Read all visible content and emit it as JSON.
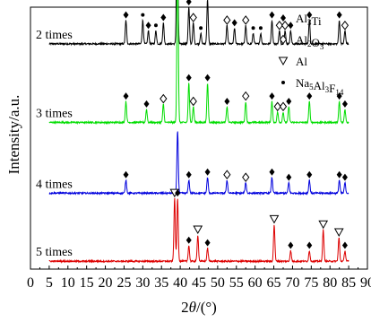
{
  "chart_data": {
    "type": "line",
    "title": "",
    "xlabel_pre": "2",
    "xlabel_theta": "θ",
    "xlabel_post": "/(°)",
    "ylabel": "Intensity/a.u.",
    "xlim": [
      0,
      90
    ],
    "x_ticks": [
      0,
      5,
      10,
      15,
      20,
      25,
      30,
      35,
      40,
      45,
      50,
      55,
      60,
      65,
      70,
      75,
      80,
      85,
      90
    ],
    "grid": false,
    "legend_position": "top-right",
    "legend": [
      {
        "symbol": "diamond",
        "base": "Al",
        "sub": "3",
        "rest": "Ti"
      },
      {
        "symbol": "open-diamond",
        "base": "Al",
        "sub": "2",
        "rest": "O",
        "sub2": "3"
      },
      {
        "symbol": "open-triangle",
        "base": "Al"
      },
      {
        "symbol": "dot",
        "base": "Na",
        "sub": "5",
        "rest": "Al",
        "sub2": "3",
        "rest2": "F",
        "sub3": "14"
      }
    ],
    "series": [
      {
        "name": "2 times",
        "color": "#000000",
        "baseline_level": 0.86,
        "peaks": [
          {
            "x": 25.5,
            "h": 0.09,
            "m": "diamond"
          },
          {
            "x": 30.0,
            "h": 0.09,
            "m": "dot"
          },
          {
            "x": 31.5,
            "h": 0.05,
            "m": "diamond"
          },
          {
            "x": 33.5,
            "h": 0.05,
            "m": "dot"
          },
          {
            "x": 35.5,
            "h": 0.08,
            "m": "diamond"
          },
          {
            "x": 39.2,
            "h": 0.66,
            "m": "none"
          },
          {
            "x": 42.3,
            "h": 0.14,
            "m": "diamond"
          },
          {
            "x": 43.5,
            "h": 0.08,
            "m": "open-diamond"
          },
          {
            "x": 45.5,
            "h": 0.04,
            "m": "dot"
          },
          {
            "x": 47.3,
            "h": 0.17,
            "m": "diamond"
          },
          {
            "x": 52.5,
            "h": 0.07,
            "m": "open-diamond"
          },
          {
            "x": 54.5,
            "h": 0.06,
            "m": "diamond"
          },
          {
            "x": 57.5,
            "h": 0.07,
            "m": "open-diamond"
          },
          {
            "x": 59.5,
            "h": 0.04,
            "m": "dot"
          },
          {
            "x": 61.5,
            "h": 0.04,
            "m": "dot"
          },
          {
            "x": 64.5,
            "h": 0.09,
            "m": "diamond"
          },
          {
            "x": 66.5,
            "h": 0.05,
            "m": "open-diamond"
          },
          {
            "x": 68.0,
            "h": 0.05,
            "m": "open-diamond"
          },
          {
            "x": 69.5,
            "h": 0.05,
            "m": "diamond"
          },
          {
            "x": 74.5,
            "h": 0.09,
            "m": "diamond"
          },
          {
            "x": 82.5,
            "h": 0.09,
            "m": "diamond"
          },
          {
            "x": 84.0,
            "h": 0.05,
            "m": "open-diamond"
          }
        ]
      },
      {
        "name": "3 times",
        "color": "#00dd00",
        "baseline_level": 0.56,
        "peaks": [
          {
            "x": 25.5,
            "h": 0.08,
            "m": "diamond"
          },
          {
            "x": 31.0,
            "h": 0.05,
            "m": "diamond"
          },
          {
            "x": 35.5,
            "h": 0.07,
            "m": "open-diamond"
          },
          {
            "x": 39.3,
            "h": 0.67,
            "m": "none"
          },
          {
            "x": 42.3,
            "h": 0.15,
            "m": "diamond"
          },
          {
            "x": 43.5,
            "h": 0.06,
            "m": "open-diamond"
          },
          {
            "x": 47.3,
            "h": 0.15,
            "m": "diamond"
          },
          {
            "x": 52.5,
            "h": 0.06,
            "m": "diamond"
          },
          {
            "x": 57.5,
            "h": 0.08,
            "m": "open-diamond"
          },
          {
            "x": 64.5,
            "h": 0.08,
            "m": "diamond"
          },
          {
            "x": 66.0,
            "h": 0.04,
            "m": "open-diamond"
          },
          {
            "x": 67.5,
            "h": 0.04,
            "m": "open-diamond"
          },
          {
            "x": 69.0,
            "h": 0.06,
            "m": "diamond"
          },
          {
            "x": 74.5,
            "h": 0.08,
            "m": "diamond"
          },
          {
            "x": 82.5,
            "h": 0.08,
            "m": "diamond"
          },
          {
            "x": 84.0,
            "h": 0.05,
            "m": "diamond"
          }
        ]
      },
      {
        "name": "4 times",
        "color": "#0000dd",
        "baseline_level": 0.29,
        "peaks": [
          {
            "x": 25.5,
            "h": 0.05,
            "m": "diamond"
          },
          {
            "x": 39.3,
            "h": 0.24,
            "m": "none"
          },
          {
            "x": 42.3,
            "h": 0.05,
            "m": "diamond"
          },
          {
            "x": 47.3,
            "h": 0.06,
            "m": "diamond"
          },
          {
            "x": 52.5,
            "h": 0.05,
            "m": "open-diamond"
          },
          {
            "x": 57.5,
            "h": 0.04,
            "m": "open-diamond"
          },
          {
            "x": 64.5,
            "h": 0.06,
            "m": "diamond"
          },
          {
            "x": 69.0,
            "h": 0.04,
            "m": "diamond"
          },
          {
            "x": 74.5,
            "h": 0.05,
            "m": "diamond"
          },
          {
            "x": 82.5,
            "h": 0.05,
            "m": "diamond"
          },
          {
            "x": 84.0,
            "h": 0.04,
            "m": "diamond"
          }
        ]
      },
      {
        "name": "5 times",
        "color": "#dd0000",
        "baseline_level": 0.03,
        "peaks": [
          {
            "x": 38.5,
            "h": 0.24,
            "m": "open-triangle"
          },
          {
            "x": 39.3,
            "h": 0.24,
            "m": "diamond"
          },
          {
            "x": 42.3,
            "h": 0.06,
            "m": "diamond"
          },
          {
            "x": 44.7,
            "h": 0.1,
            "m": "open-triangle"
          },
          {
            "x": 47.3,
            "h": 0.05,
            "m": "diamond"
          },
          {
            "x": 65.1,
            "h": 0.14,
            "m": "open-triangle"
          },
          {
            "x": 69.5,
            "h": 0.04,
            "m": "diamond"
          },
          {
            "x": 74.5,
            "h": 0.04,
            "m": "diamond"
          },
          {
            "x": 78.2,
            "h": 0.12,
            "m": "open-triangle"
          },
          {
            "x": 82.4,
            "h": 0.09,
            "m": "open-triangle"
          },
          {
            "x": 84.0,
            "h": 0.04,
            "m": "diamond"
          }
        ]
      }
    ]
  }
}
